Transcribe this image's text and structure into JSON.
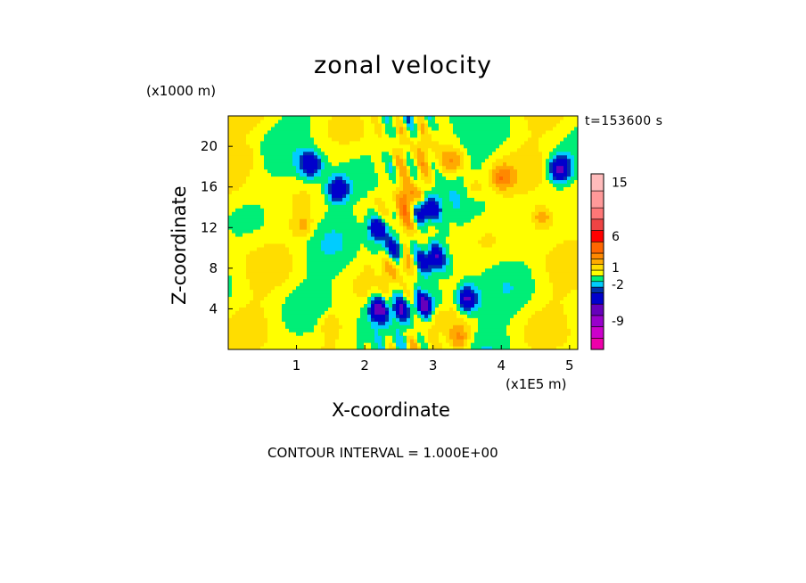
{
  "chart_data": {
    "type": "heatmap",
    "title": "zonal velocity",
    "xlabel": "X-coordinate",
    "ylabel": "Z-coordinate",
    "x_unit_label": "(x1E5 m)",
    "y_unit_label": "(x1000 m)",
    "time_label": "t=153600 s",
    "footer": "CONTOUR INTERVAL = 1.000E+00",
    "xlim": [
      0,
      5.12
    ],
    "ylim": [
      0,
      23
    ],
    "x_ticks": [
      1,
      2,
      3,
      4,
      5
    ],
    "y_ticks": [
      4,
      8,
      12,
      16,
      20
    ],
    "colorbar": {
      "levels": [
        -13,
        -11,
        -9,
        -7,
        -5,
        -3,
        -2,
        -1,
        0,
        1,
        2,
        3,
        4,
        6,
        8,
        10,
        12,
        15,
        18
      ],
      "colors": [
        "#ee00aa",
        "#cc00cc",
        "#9900cc",
        "#6600bb",
        "#0000cc",
        "#0033aa",
        "#00ccff",
        "#00ee77",
        "#ffff00",
        "#ffdd00",
        "#ffaa00",
        "#ff8800",
        "#ff6600",
        "#ff0000",
        "#ee4444",
        "#ff7777",
        "#ff9999",
        "#ffbbbb"
      ],
      "tick_labels": [
        "15",
        "6",
        "1",
        "-2",
        "-9"
      ],
      "tick_values": [
        15,
        6,
        1,
        -2,
        -9
      ]
    },
    "features": [
      {
        "x": 1.2,
        "z": 18.2,
        "value": -5
      },
      {
        "x": 1.6,
        "z": 15.8,
        "value": -5
      },
      {
        "x": 2.2,
        "z": 12.0,
        "value": -6
      },
      {
        "x": 2.4,
        "z": 10.2,
        "value": -4
      },
      {
        "x": 2.9,
        "z": 13.8,
        "value": -6
      },
      {
        "x": 3.0,
        "z": 9.0,
        "value": -5
      },
      {
        "x": 3.5,
        "z": 5.0,
        "value": -6
      },
      {
        "x": 2.2,
        "z": 4.0,
        "value": -6
      },
      {
        "x": 2.55,
        "z": 4.0,
        "value": -4
      },
      {
        "x": 2.9,
        "z": 4.5,
        "value": -6
      },
      {
        "x": 4.85,
        "z": 17.8,
        "value": -6
      },
      {
        "x": 4.6,
        "z": 13.0,
        "value": 3
      },
      {
        "x": 4.0,
        "z": 17.0,
        "value": 3
      },
      {
        "x": 3.3,
        "z": 18.5,
        "value": 3
      },
      {
        "x": 3.6,
        "z": 16.0,
        "value": 2
      },
      {
        "x": 2.7,
        "z": 15.0,
        "value": 3
      },
      {
        "x": 1.5,
        "z": 2.5,
        "value": 2
      },
      {
        "x": 3.4,
        "z": 1.2,
        "value": 3
      },
      {
        "x": 1.1,
        "z": 12.2,
        "value": 2
      },
      {
        "x": 0.3,
        "z": 19.0,
        "value": 1
      },
      {
        "x": 2.5,
        "z": 8.0,
        "value": 2
      }
    ]
  }
}
